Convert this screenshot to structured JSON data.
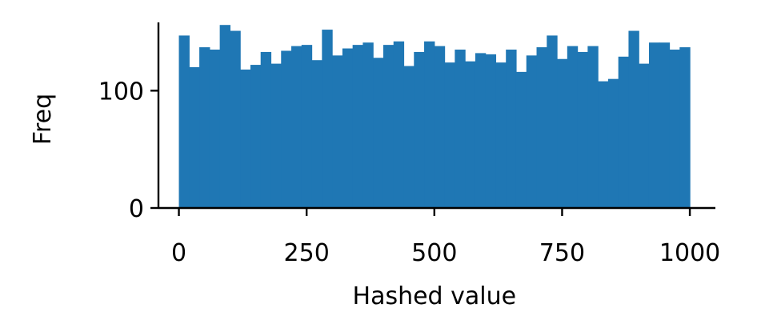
{
  "chart_data": {
    "type": "bar",
    "subtype": "histogram",
    "title": "",
    "xlabel": "Hashed value",
    "ylabel": "Freq",
    "xlim": [
      -40,
      1050
    ],
    "ylim": [
      0,
      165
    ],
    "xticks": [
      0,
      250,
      500,
      750,
      1000
    ],
    "yticks": [
      0,
      100
    ],
    "bin_start": 0,
    "bin_width": 20,
    "values": [
      147,
      120,
      137,
      135,
      156,
      151,
      118,
      122,
      133,
      123,
      134,
      138,
      139,
      126,
      152,
      130,
      136,
      139,
      141,
      128,
      139,
      142,
      121,
      133,
      142,
      138,
      124,
      135,
      125,
      132,
      131,
      124,
      135,
      116,
      130,
      137,
      147,
      127,
      138,
      133,
      138,
      108,
      110,
      129,
      151,
      123,
      141,
      141,
      135,
      137
    ],
    "bar_color": "#1f77b4",
    "grid": false,
    "spines": [
      "left",
      "bottom"
    ]
  }
}
